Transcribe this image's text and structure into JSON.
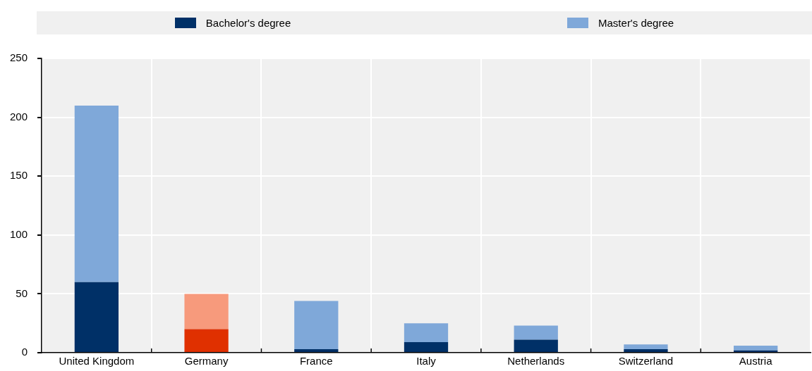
{
  "chart_data": {
    "type": "bar",
    "stacked": true,
    "categories": [
      "United Kingdom",
      "Germany",
      "France",
      "Italy",
      "Netherlands",
      "Switzerland",
      "Austria"
    ],
    "series": [
      {
        "name": "Bachelor's degree",
        "color": "#003067",
        "colors": [
          "#003067",
          "#e03000",
          "#003067",
          "#003067",
          "#003067",
          "#003067",
          "#003067"
        ],
        "values": [
          60,
          20,
          3,
          9,
          11,
          3,
          2
        ]
      },
      {
        "name": "Master's degree",
        "color": "#7fa8d9",
        "colors": [
          "#7fa8d9",
          "#f79a7c",
          "#7fa8d9",
          "#7fa8d9",
          "#7fa8d9",
          "#7fa8d9",
          "#7fa8d9"
        ],
        "values": [
          150,
          30,
          41,
          16,
          12,
          4,
          4
        ]
      }
    ],
    "ylim": [
      0,
      250
    ],
    "yticks": [
      0,
      50,
      100,
      150,
      200,
      250
    ],
    "grid": true,
    "legend": "top"
  }
}
